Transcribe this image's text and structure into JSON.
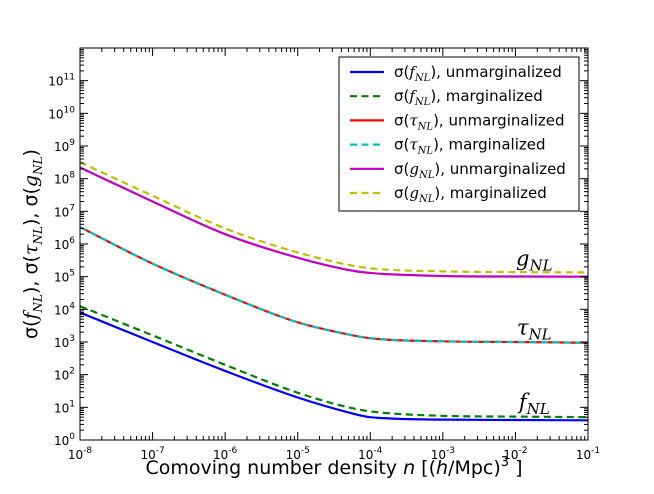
{
  "chart_data": {
    "type": "line",
    "title": "",
    "xlabel": "Comoving number density n  [(h/Mpc)^3 ]",
    "xlabel_parts": {
      "pre": "Comoving number density ",
      "var": "n",
      "mid": "  [(",
      "h": "h",
      "post": "/Mpc)",
      "exp": "3",
      "end": " ]"
    },
    "ylabel": "σ(f_NL), σ(τ_NL), σ(g_NL)",
    "x_scale": "log",
    "y_scale": "log",
    "xlim": [
      1e-08,
      0.1
    ],
    "ylim": [
      1,
      1000000000000.0
    ],
    "x_ticks": [
      {
        "base": "10",
        "exp": "-8",
        "value": 1e-08
      },
      {
        "base": "10",
        "exp": "-7",
        "value": 1e-07
      },
      {
        "base": "10",
        "exp": "-6",
        "value": 1e-06
      },
      {
        "base": "10",
        "exp": "-5",
        "value": 1e-05
      },
      {
        "base": "10",
        "exp": "-4",
        "value": 0.0001
      },
      {
        "base": "10",
        "exp": "-3",
        "value": 0.001
      },
      {
        "base": "10",
        "exp": "-2",
        "value": 0.01
      },
      {
        "base": "10",
        "exp": "-1",
        "value": 0.1
      }
    ],
    "y_ticks": [
      {
        "base": "10",
        "exp": "0",
        "value": 1
      },
      {
        "base": "10",
        "exp": "1",
        "value": 10
      },
      {
        "base": "10",
        "exp": "2",
        "value": 100
      },
      {
        "base": "10",
        "exp": "3",
        "value": 1000
      },
      {
        "base": "10",
        "exp": "4",
        "value": 10000
      },
      {
        "base": "10",
        "exp": "5",
        "value": 100000
      },
      {
        "base": "10",
        "exp": "6",
        "value": 1000000
      },
      {
        "base": "10",
        "exp": "7",
        "value": 10000000
      },
      {
        "base": "10",
        "exp": "8",
        "value": 100000000
      },
      {
        "base": "10",
        "exp": "9",
        "value": 1000000000
      },
      {
        "base": "10",
        "exp": "10",
        "value": 10000000000
      },
      {
        "base": "10",
        "exp": "11",
        "value": 100000000000
      }
    ],
    "x": [
      1e-08,
      1e-07,
      1e-06,
      1e-05,
      5e-05,
      0.0001,
      0.001,
      0.01,
      0.1
    ],
    "series": [
      {
        "name": "σ(f_NL), unmarginalized",
        "sym": "f",
        "word": "unmarginalized",
        "color": "#0000ff",
        "dash": false,
        "values": [
          8000,
          1000,
          130,
          20,
          7,
          5,
          4.2,
          4.1,
          4.0
        ]
      },
      {
        "name": "σ(f_NL), marginalized",
        "sym": "f",
        "word": "marginalized",
        "color": "#008000",
        "dash": true,
        "values": [
          12500,
          1600,
          200,
          28,
          10,
          7.5,
          5.5,
          5.2,
          5.0
        ]
      },
      {
        "name": "σ(τ_NL), unmarginalized",
        "sym": "τ",
        "word": "unmarginalized",
        "color": "#ff0000",
        "dash": false,
        "values": [
          3300000,
          250000,
          28000,
          4000,
          1700,
          1300,
          1050,
          1000,
          950
        ]
      },
      {
        "name": "σ(τ_NL), marginalized",
        "sym": "τ",
        "word": "marginalized",
        "color": "#00bfbf",
        "dash": true,
        "values": [
          3300000,
          250000,
          28000,
          4000,
          1700,
          1300,
          1050,
          1000,
          950
        ]
      },
      {
        "name": "σ(g_NL), unmarginalized",
        "sym": "g",
        "word": "unmarginalized",
        "color": "#bf00bf",
        "dash": false,
        "values": [
          220000000,
          20000000,
          2000000,
          380000,
          160000,
          130000,
          105000,
          101000,
          100000
        ]
      },
      {
        "name": "σ(g_NL), marginalized",
        "sym": "g",
        "word": "marginalized",
        "color": "#bfbf00",
        "dash": true,
        "values": [
          320000000,
          30000000,
          3000000,
          550000,
          230000,
          180000,
          145000,
          138000,
          135000
        ]
      }
    ],
    "annotations": [
      {
        "sym": "g",
        "sub": "NL",
        "x": 0.02,
        "y": 220000
      },
      {
        "sym": "τ",
        "sub": "NL",
        "x": 0.02,
        "y": 1700
      },
      {
        "sym": "f",
        "sub": "NL",
        "x": 0.02,
        "y": 9
      }
    ],
    "legend_position": "top-right",
    "grid": false
  }
}
